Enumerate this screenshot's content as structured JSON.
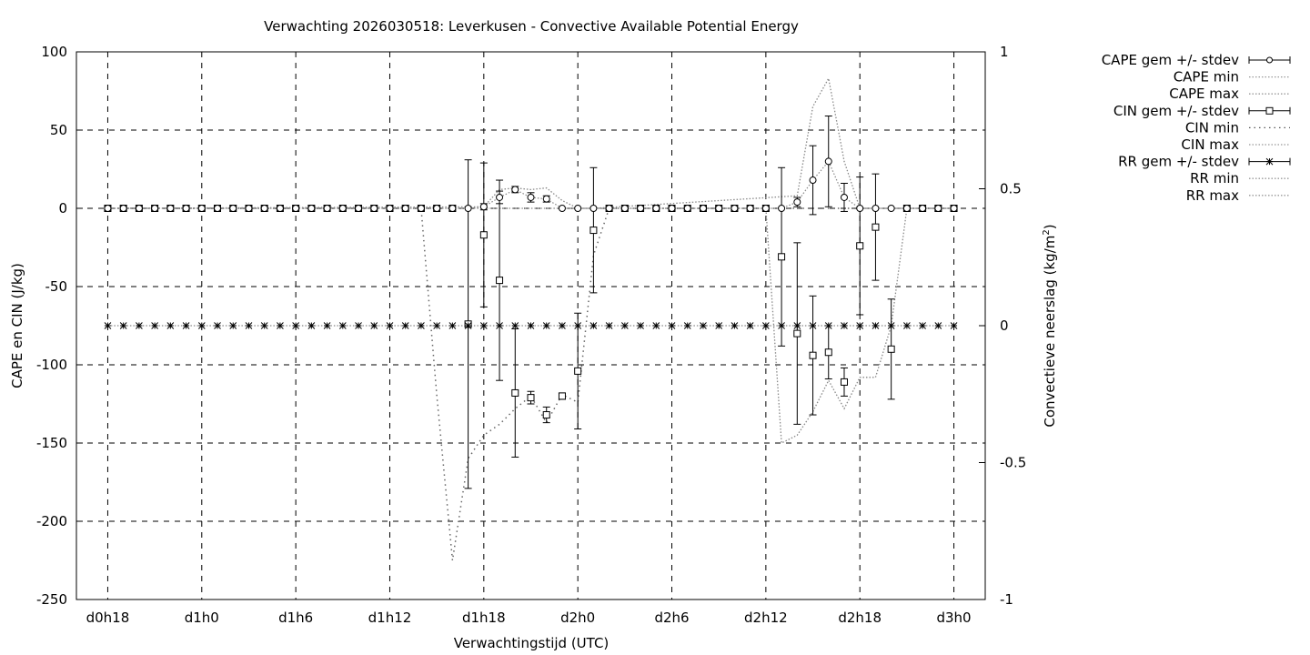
{
  "chart_data": {
    "type": "line",
    "title": "Verwachting 2026030518: Leverkusen - Convective Available Potential Energy",
    "xlabel": "Verwachtingstijd (UTC)",
    "ylabel": "CAPE en CIN (J/kg)",
    "y2label_main": "Convectieve neerslag (kg/m",
    "y2label_sup": "2",
    "y2label_end": ")",
    "x_tick_labels": [
      "d0h18",
      "d1h0",
      "d1h6",
      "d1h12",
      "d1h18",
      "d2h0",
      "d2h6",
      "d2h12",
      "d2h18",
      "d3h0"
    ],
    "x_range_hours": [
      -2,
      56
    ],
    "ylim": [
      -250,
      100
    ],
    "y_ticks": [
      100,
      50,
      0,
      -50,
      -100,
      -150,
      -200,
      -250
    ],
    "y2lim": [
      -1,
      1
    ],
    "y2_ticks": [
      1,
      0.5,
      0,
      -0.5,
      -1
    ],
    "grid": true,
    "legend_position": "outside-right",
    "legend": [
      {
        "label": "CAPE gem +/- stdev",
        "style": "errorbar-circle"
      },
      {
        "label": "CAPE min",
        "style": "dotted"
      },
      {
        "label": "CAPE max",
        "style": "dotted"
      },
      {
        "label": "CIN gem +/- stdev",
        "style": "errorbar-square"
      },
      {
        "label": "CIN min",
        "style": "dotted-sparse"
      },
      {
        "label": "CIN max",
        "style": "dotted"
      },
      {
        "label": "RR gem +/- stdev",
        "style": "errorbar-star"
      },
      {
        "label": "RR min",
        "style": "dotted"
      },
      {
        "label": "RR max",
        "style": "dotted"
      }
    ],
    "cape": {
      "x": [
        0,
        1,
        2,
        3,
        4,
        5,
        6,
        7,
        8,
        9,
        10,
        11,
        12,
        13,
        14,
        15,
        16,
        17,
        18,
        19,
        20,
        21,
        22,
        23,
        24,
        25,
        26,
        27,
        28,
        29,
        30,
        31,
        32,
        33,
        34,
        35,
        36,
        37,
        38,
        39,
        40,
        41,
        42,
        43,
        44,
        45,
        46,
        47,
        48,
        49,
        50,
        51,
        52,
        53,
        54
      ],
      "mean": [
        0,
        0,
        0,
        0,
        0,
        0,
        0,
        0,
        0,
        0,
        0,
        0,
        0,
        0,
        0,
        0,
        0,
        0,
        0,
        0,
        0,
        0,
        0,
        0,
        1,
        7,
        12,
        7,
        6,
        0,
        0,
        0,
        0,
        0,
        0,
        0,
        0,
        0,
        0,
        0,
        0,
        0,
        0,
        0,
        4,
        18,
        30,
        7,
        0,
        0,
        0,
        0,
        0,
        0,
        0
      ],
      "sd": [
        0,
        0,
        0,
        0,
        0,
        0,
        0,
        0,
        0,
        0,
        0,
        0,
        0,
        0,
        0,
        0,
        0,
        0,
        0,
        0,
        0,
        0,
        0,
        0,
        2,
        4,
        2,
        3,
        2,
        0,
        0,
        0,
        0,
        0,
        0,
        0,
        0,
        0,
        0,
        0,
        0,
        0,
        0,
        0,
        3,
        22,
        29,
        9,
        0,
        0,
        0,
        0,
        0,
        0,
        0
      ]
    },
    "cape_max_line": {
      "x": [
        0,
        24,
        25,
        26,
        27,
        28,
        29,
        30,
        31,
        44,
        45,
        46,
        47,
        48,
        49,
        54
      ],
      "y": [
        0,
        1,
        12,
        13,
        12,
        13,
        5,
        0,
        0,
        8,
        65,
        83,
        30,
        0,
        0,
        0
      ]
    },
    "cin": {
      "x": [
        0,
        1,
        2,
        3,
        4,
        5,
        6,
        7,
        8,
        9,
        10,
        11,
        12,
        13,
        14,
        15,
        16,
        17,
        18,
        19,
        20,
        21,
        22,
        23,
        24,
        25,
        26,
        27,
        28,
        29,
        30,
        31,
        32,
        33,
        34,
        35,
        36,
        37,
        38,
        39,
        40,
        41,
        42,
        43,
        44,
        45,
        46,
        47,
        48,
        49,
        50,
        51,
        52,
        53,
        54
      ],
      "mean": [
        0,
        0,
        0,
        0,
        0,
        0,
        0,
        0,
        0,
        0,
        0,
        0,
        0,
        0,
        0,
        0,
        0,
        0,
        0,
        0,
        0,
        0,
        0,
        -74,
        -17,
        -46,
        -118,
        -121,
        -132,
        -120,
        -104,
        -14,
        0,
        0,
        0,
        0,
        0,
        0,
        0,
        0,
        0,
        0,
        0,
        -31,
        -80,
        -94,
        -92,
        -111,
        -24,
        -12,
        -90,
        0,
        0,
        0,
        0
      ],
      "sd": [
        0,
        0,
        0,
        0,
        0,
        0,
        0,
        0,
        0,
        0,
        0,
        0,
        0,
        0,
        0,
        0,
        0,
        0,
        0,
        0,
        0,
        0,
        0,
        105,
        46,
        64,
        41,
        4,
        5,
        2,
        37,
        40,
        0,
        0,
        0,
        0,
        0,
        0,
        0,
        0,
        0,
        0,
        0,
        57,
        58,
        38,
        17,
        9,
        44,
        34,
        32,
        0,
        0,
        0,
        0
      ]
    },
    "cin_min_line": {
      "x": [
        0,
        20,
        21,
        22,
        23,
        24,
        25,
        26,
        27,
        28,
        29,
        30,
        31,
        32,
        54
      ],
      "y": [
        0,
        0,
        -120,
        -225,
        -160,
        -145,
        -138,
        -128,
        -120,
        -137,
        -119,
        -124,
        -30,
        0,
        0
      ]
    },
    "cin_max_line": {
      "x": [
        0,
        42,
        43,
        44,
        45,
        46,
        47,
        48,
        49,
        50,
        51,
        54
      ],
      "y": [
        0,
        0,
        -150,
        -145,
        -130,
        -110,
        -128,
        -108,
        -108,
        -75,
        0,
        0
      ]
    },
    "rr": {
      "x": [
        0,
        1,
        2,
        3,
        4,
        5,
        6,
        7,
        8,
        9,
        10,
        11,
        12,
        13,
        14,
        15,
        16,
        17,
        18,
        19,
        20,
        21,
        22,
        23,
        24,
        25,
        26,
        27,
        28,
        29,
        30,
        31,
        32,
        33,
        34,
        35,
        36,
        37,
        38,
        39,
        40,
        41,
        42,
        43,
        44,
        45,
        46,
        47,
        48,
        49,
        50,
        51,
        52,
        53,
        54
      ],
      "mean": [
        0,
        0,
        0,
        0,
        0,
        0,
        0,
        0,
        0,
        0,
        0,
        0,
        0,
        0,
        0,
        0,
        0,
        0,
        0,
        0,
        0,
        0,
        0,
        0,
        0,
        0,
        0,
        0,
        0,
        0,
        0,
        0,
        0,
        0,
        0,
        0,
        0,
        0,
        0,
        0,
        0,
        0,
        0,
        0,
        0,
        0,
        0,
        0,
        0,
        0,
        0,
        0,
        0,
        0,
        0
      ]
    }
  }
}
